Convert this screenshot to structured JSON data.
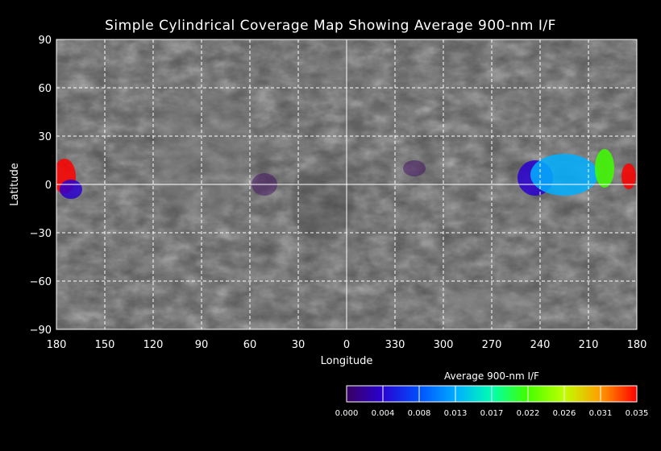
{
  "title": "Simple Cylindrical Coverage Map Showing Average 900-nm I/F",
  "xlabel": "Longitude",
  "ylabel": "Latitude",
  "x_ticks": [
    "180",
    "150",
    "120",
    "90",
    "60",
    "30",
    "0",
    "330",
    "300",
    "270",
    "240",
    "210",
    "180"
  ],
  "y_ticks": [
    "90",
    "60",
    "30",
    "0",
    "−30",
    "−60",
    "−90"
  ],
  "colorbar": {
    "title": "Average 900-nm I/F",
    "ticks": [
      "0.000",
      "0.004",
      "0.008",
      "0.013",
      "0.017",
      "0.022",
      "0.026",
      "0.031",
      "0.035"
    ],
    "colors": [
      "#3a0060",
      "#2a00d0",
      "#0050ff",
      "#00b0ff",
      "#00ffb0",
      "#40ff00",
      "#c0ff00",
      "#ffa000",
      "#ff0000"
    ]
  },
  "colors": {
    "background": "#000000",
    "map_base": "#5a5a5a",
    "grid": "#ffffff"
  },
  "coverage": [
    {
      "name": "west-edge-red",
      "lon": 175,
      "lat": 5,
      "value": 0.035
    },
    {
      "name": "west-edge-blue",
      "lon": 171,
      "lat": -3,
      "value": 0.006
    },
    {
      "name": "east-blue",
      "lon": 243,
      "lat": 4,
      "value": 0.006
    },
    {
      "name": "east-cyan",
      "lon": 225,
      "lat": 6,
      "value": 0.013
    },
    {
      "name": "east-green",
      "lon": 200,
      "lat": 10,
      "value": 0.02
    },
    {
      "name": "east-red",
      "lon": 185,
      "lat": 5,
      "value": 0.035
    },
    {
      "name": "purple-60",
      "lon": 51,
      "lat": 0,
      "value": 0.002
    },
    {
      "name": "purple-320",
      "lon": 318,
      "lat": 10,
      "value": 0.002
    }
  ]
}
